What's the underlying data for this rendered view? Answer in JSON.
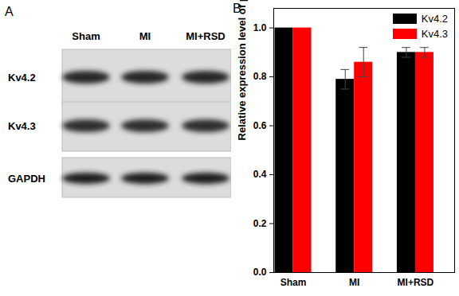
{
  "chart_data": {
    "type": "bar",
    "title": "B",
    "categories": [
      "Sham",
      "MI",
      "MI+RSD"
    ],
    "series": [
      {
        "name": "Kv4.2",
        "color": "#000000",
        "values": [
          1.0,
          0.79,
          0.9
        ],
        "errors": [
          0,
          0.04,
          0.02
        ]
      },
      {
        "name": "Kv4.3",
        "color": "#ff0000",
        "values": [
          1.0,
          0.86,
          0.9
        ],
        "errors": [
          0,
          0.06,
          0.02
        ]
      }
    ],
    "y_label": "Relative expression level of proteins",
    "ylim": [
      0,
      1.08
    ],
    "yticks": [
      {
        "value": 0,
        "label": "0.0"
      },
      0.2,
      0.4,
      0.6,
      0.8,
      {
        "value": 1,
        "label": "1.0"
      }
    ],
    "legend": "top-right",
    "grid": false
  },
  "blot": {
    "panel_label": "A",
    "lanes": [
      "Sham",
      "MI",
      "MI+RSD"
    ],
    "rows": [
      "Kv4.2",
      "Kv4.3",
      "GAPDH"
    ]
  }
}
